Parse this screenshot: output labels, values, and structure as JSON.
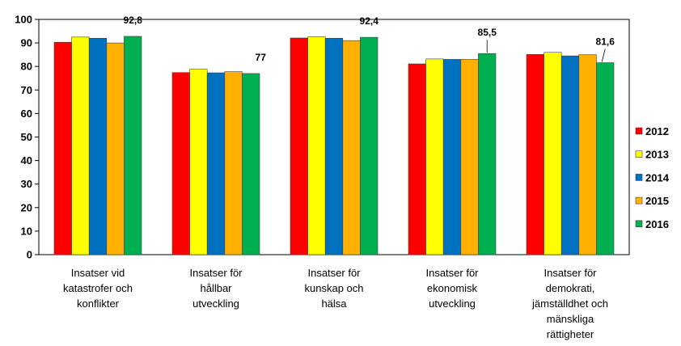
{
  "chart_data": {
    "type": "bar",
    "categories": [
      [
        "Insatser vid",
        "katastrofer och",
        "konflikter"
      ],
      [
        "Insatser för",
        "hållbar",
        "utveckling"
      ],
      [
        "Insatser för",
        "kunskap och",
        "hälsa"
      ],
      [
        "Insatser för",
        "ekonomisk",
        "utveckling"
      ],
      [
        "Insatser för",
        "demokrati,",
        "jämställdhet och",
        "mänskliga",
        "rättigheter"
      ]
    ],
    "series": [
      {
        "name": "2012",
        "color": "#ff0000",
        "values": [
          90.3,
          77.4,
          92.1,
          81.1,
          85.1
        ]
      },
      {
        "name": "2013",
        "color": "#ffff00",
        "values": [
          92.5,
          78.8,
          92.6,
          83.2,
          86.0
        ]
      },
      {
        "name": "2014",
        "color": "#0070c0",
        "values": [
          92.0,
          77.3,
          92.0,
          83.0,
          84.5
        ]
      },
      {
        "name": "2015",
        "color": "#ffb000",
        "values": [
          90.0,
          77.8,
          91.0,
          83.0,
          85.0
        ]
      },
      {
        "name": "2016",
        "color": "#00b050",
        "values": [
          92.8,
          77.0,
          92.4,
          85.5,
          81.6
        ]
      }
    ],
    "data_labels": [
      "92,8",
      "77",
      "92,4",
      "85,5",
      "81,6"
    ],
    "ylim": [
      0,
      100
    ],
    "yticks": [
      "0",
      "10",
      "20",
      "30",
      "40",
      "50",
      "60",
      "70",
      "80",
      "90",
      "100"
    ],
    "grid": false,
    "legend": "right"
  }
}
